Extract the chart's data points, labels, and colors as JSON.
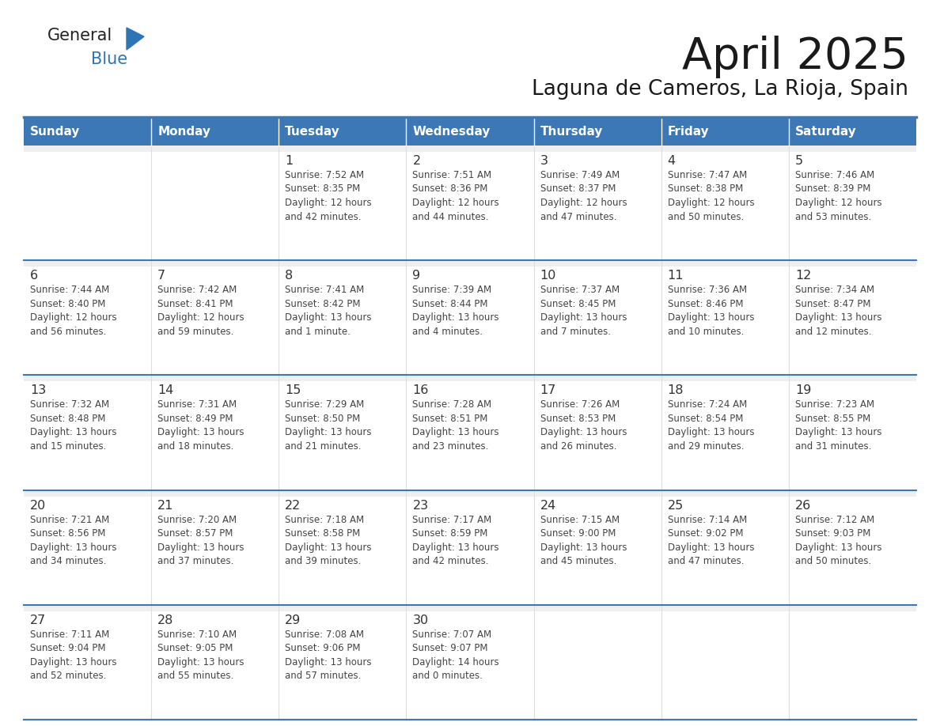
{
  "title": "April 2025",
  "subtitle": "Laguna de Cameros, La Rioja, Spain",
  "days_of_week": [
    "Sunday",
    "Monday",
    "Tuesday",
    "Wednesday",
    "Thursday",
    "Friday",
    "Saturday"
  ],
  "header_bg": "#3C78B5",
  "header_text": "#FFFFFF",
  "cell_bg_row1": "#EFEFEF",
  "cell_bg_white": "#FFFFFF",
  "day_number_color": "#333333",
  "text_color": "#444444",
  "row_line_color": "#3C78B5",
  "logo_general_color": "#222222",
  "logo_blue_color": "#2E75B6",
  "calendar_data": [
    [
      {
        "day": 0,
        "info": ""
      },
      {
        "day": 0,
        "info": ""
      },
      {
        "day": 1,
        "info": "Sunrise: 7:52 AM\nSunset: 8:35 PM\nDaylight: 12 hours\nand 42 minutes."
      },
      {
        "day": 2,
        "info": "Sunrise: 7:51 AM\nSunset: 8:36 PM\nDaylight: 12 hours\nand 44 minutes."
      },
      {
        "day": 3,
        "info": "Sunrise: 7:49 AM\nSunset: 8:37 PM\nDaylight: 12 hours\nand 47 minutes."
      },
      {
        "day": 4,
        "info": "Sunrise: 7:47 AM\nSunset: 8:38 PM\nDaylight: 12 hours\nand 50 minutes."
      },
      {
        "day": 5,
        "info": "Sunrise: 7:46 AM\nSunset: 8:39 PM\nDaylight: 12 hours\nand 53 minutes."
      }
    ],
    [
      {
        "day": 6,
        "info": "Sunrise: 7:44 AM\nSunset: 8:40 PM\nDaylight: 12 hours\nand 56 minutes."
      },
      {
        "day": 7,
        "info": "Sunrise: 7:42 AM\nSunset: 8:41 PM\nDaylight: 12 hours\nand 59 minutes."
      },
      {
        "day": 8,
        "info": "Sunrise: 7:41 AM\nSunset: 8:42 PM\nDaylight: 13 hours\nand 1 minute."
      },
      {
        "day": 9,
        "info": "Sunrise: 7:39 AM\nSunset: 8:44 PM\nDaylight: 13 hours\nand 4 minutes."
      },
      {
        "day": 10,
        "info": "Sunrise: 7:37 AM\nSunset: 8:45 PM\nDaylight: 13 hours\nand 7 minutes."
      },
      {
        "day": 11,
        "info": "Sunrise: 7:36 AM\nSunset: 8:46 PM\nDaylight: 13 hours\nand 10 minutes."
      },
      {
        "day": 12,
        "info": "Sunrise: 7:34 AM\nSunset: 8:47 PM\nDaylight: 13 hours\nand 12 minutes."
      }
    ],
    [
      {
        "day": 13,
        "info": "Sunrise: 7:32 AM\nSunset: 8:48 PM\nDaylight: 13 hours\nand 15 minutes."
      },
      {
        "day": 14,
        "info": "Sunrise: 7:31 AM\nSunset: 8:49 PM\nDaylight: 13 hours\nand 18 minutes."
      },
      {
        "day": 15,
        "info": "Sunrise: 7:29 AM\nSunset: 8:50 PM\nDaylight: 13 hours\nand 21 minutes."
      },
      {
        "day": 16,
        "info": "Sunrise: 7:28 AM\nSunset: 8:51 PM\nDaylight: 13 hours\nand 23 minutes."
      },
      {
        "day": 17,
        "info": "Sunrise: 7:26 AM\nSunset: 8:53 PM\nDaylight: 13 hours\nand 26 minutes."
      },
      {
        "day": 18,
        "info": "Sunrise: 7:24 AM\nSunset: 8:54 PM\nDaylight: 13 hours\nand 29 minutes."
      },
      {
        "day": 19,
        "info": "Sunrise: 7:23 AM\nSunset: 8:55 PM\nDaylight: 13 hours\nand 31 minutes."
      }
    ],
    [
      {
        "day": 20,
        "info": "Sunrise: 7:21 AM\nSunset: 8:56 PM\nDaylight: 13 hours\nand 34 minutes."
      },
      {
        "day": 21,
        "info": "Sunrise: 7:20 AM\nSunset: 8:57 PM\nDaylight: 13 hours\nand 37 minutes."
      },
      {
        "day": 22,
        "info": "Sunrise: 7:18 AM\nSunset: 8:58 PM\nDaylight: 13 hours\nand 39 minutes."
      },
      {
        "day": 23,
        "info": "Sunrise: 7:17 AM\nSunset: 8:59 PM\nDaylight: 13 hours\nand 42 minutes."
      },
      {
        "day": 24,
        "info": "Sunrise: 7:15 AM\nSunset: 9:00 PM\nDaylight: 13 hours\nand 45 minutes."
      },
      {
        "day": 25,
        "info": "Sunrise: 7:14 AM\nSunset: 9:02 PM\nDaylight: 13 hours\nand 47 minutes."
      },
      {
        "day": 26,
        "info": "Sunrise: 7:12 AM\nSunset: 9:03 PM\nDaylight: 13 hours\nand 50 minutes."
      }
    ],
    [
      {
        "day": 27,
        "info": "Sunrise: 7:11 AM\nSunset: 9:04 PM\nDaylight: 13 hours\nand 52 minutes."
      },
      {
        "day": 28,
        "info": "Sunrise: 7:10 AM\nSunset: 9:05 PM\nDaylight: 13 hours\nand 55 minutes."
      },
      {
        "day": 29,
        "info": "Sunrise: 7:08 AM\nSunset: 9:06 PM\nDaylight: 13 hours\nand 57 minutes."
      },
      {
        "day": 30,
        "info": "Sunrise: 7:07 AM\nSunset: 9:07 PM\nDaylight: 14 hours\nand 0 minutes."
      },
      {
        "day": 0,
        "info": ""
      },
      {
        "day": 0,
        "info": ""
      },
      {
        "day": 0,
        "info": ""
      }
    ]
  ]
}
